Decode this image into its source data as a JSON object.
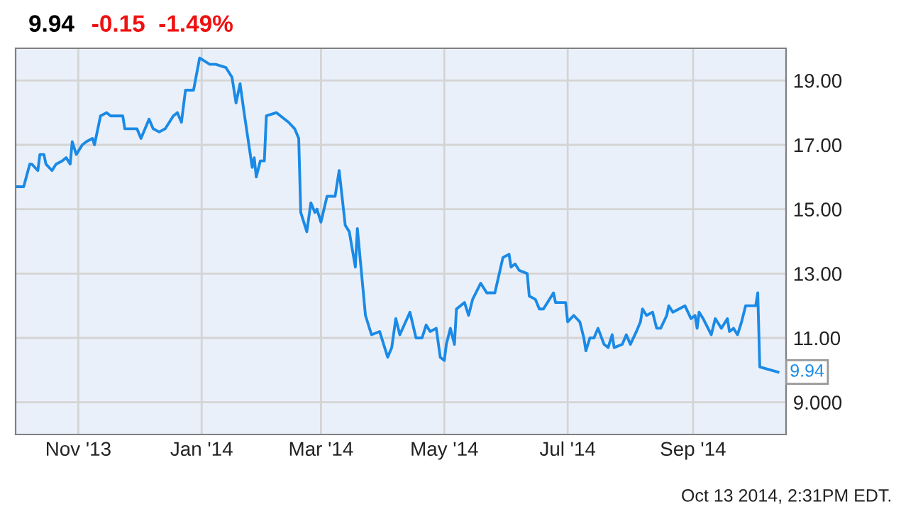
{
  "chart_data": {
    "type": "line",
    "title": "9.94",
    "subtitle": "-0.15  -1.49%",
    "annotations": [
      {
        "text": "9.94",
        "x": "2014-10-13",
        "y": 9.94
      },
      "Oct 13 2014, 2:31PM EDT."
    ],
    "xlim": [
      "2013-10-01",
      "2014-10-17"
    ],
    "xticks": [
      {
        "value": "2013-11-01",
        "label": "Nov '13"
      },
      {
        "value": "2014-01-01",
        "label": "Jan '14"
      },
      {
        "value": "2014-03-01",
        "label": "Mar '14"
      },
      {
        "value": "2014-05-01",
        "label": "May '14"
      },
      {
        "value": "2014-07-01",
        "label": "Jul '14"
      },
      {
        "value": "2014-09-01",
        "label": "Sep '14"
      }
    ],
    "ylim": [
      8,
      20
    ],
    "yticks": [
      {
        "value": 9,
        "label": "9.000"
      },
      {
        "value": 11,
        "label": "11.00"
      },
      {
        "value": 13,
        "label": "13.00"
      },
      {
        "value": 15,
        "label": "15.00"
      },
      {
        "value": 17,
        "label": "17.00"
      },
      {
        "value": 19,
        "label": "19.00"
      }
    ],
    "grid": true,
    "legend": false,
    "marker": "none",
    "line_style": "solid",
    "series": [
      {
        "color": "#1a8ae6",
        "x": [
          "2013-10-01",
          "2013-10-05",
          "2013-10-08",
          "2013-10-09",
          "2013-10-12",
          "2013-10-13",
          "2013-10-15",
          "2013-10-16",
          "2013-10-19",
          "2013-10-21",
          "2013-10-24",
          "2013-10-26",
          "2013-10-28",
          "2013-10-29",
          "2013-10-31",
          "2013-11-03",
          "2013-11-05",
          "2013-11-08",
          "2013-11-09",
          "2013-11-12",
          "2013-11-15",
          "2013-11-17",
          "2013-11-20",
          "2013-11-23",
          "2013-11-24",
          "2013-11-27",
          "2013-11-30",
          "2013-12-02",
          "2013-12-06",
          "2013-12-08",
          "2013-12-11",
          "2013-12-14",
          "2013-12-18",
          "2013-12-20",
          "2013-12-22",
          "2013-12-24",
          "2013-12-28",
          "2013-12-31",
          "2014-01-05",
          "2014-01-08",
          "2014-01-13",
          "2014-01-16",
          "2014-01-18",
          "2014-01-20",
          "2014-01-22",
          "2014-01-26",
          "2014-01-27",
          "2014-01-28",
          "2014-01-30",
          "2014-02-01",
          "2014-02-02",
          "2014-02-07",
          "2014-02-09",
          "2014-02-13",
          "2014-02-16",
          "2014-02-18",
          "2014-02-19",
          "2014-02-22",
          "2014-02-24",
          "2014-02-26",
          "2014-02-27",
          "2014-03-01",
          "2014-03-04",
          "2014-03-08",
          "2014-03-10",
          "2014-03-13",
          "2014-03-15",
          "2014-03-18",
          "2014-03-19",
          "2014-03-23",
          "2014-03-26",
          "2014-03-30",
          "2014-04-03",
          "2014-04-05",
          "2014-04-07",
          "2014-04-09",
          "2014-04-14",
          "2014-04-17",
          "2014-04-20",
          "2014-04-22",
          "2014-04-24",
          "2014-04-27",
          "2014-04-29",
          "2014-05-01",
          "2014-05-02",
          "2014-05-04",
          "2014-05-06",
          "2014-05-07",
          "2014-05-11",
          "2014-05-13",
          "2014-05-15",
          "2014-05-19",
          "2014-05-22",
          "2014-05-26",
          "2014-05-30",
          "2014-06-02",
          "2014-06-03",
          "2014-06-05",
          "2014-06-07",
          "2014-06-11",
          "2014-06-12",
          "2014-06-15",
          "2014-06-17",
          "2014-06-19",
          "2014-06-24",
          "2014-06-25",
          "2014-06-30",
          "2014-07-01",
          "2014-07-04",
          "2014-07-07",
          "2014-07-09",
          "2014-07-10",
          "2014-07-12",
          "2014-07-14",
          "2014-07-16",
          "2014-07-19",
          "2014-07-21",
          "2014-07-23",
          "2014-07-24",
          "2014-07-28",
          "2014-07-30",
          "2014-08-01",
          "2014-08-04",
          "2014-08-06",
          "2014-08-07",
          "2014-08-09",
          "2014-08-12",
          "2014-08-14",
          "2014-08-16",
          "2014-08-19",
          "2014-08-20",
          "2014-08-22",
          "2014-08-28",
          "2014-08-31",
          "2014-09-02",
          "2014-09-03",
          "2014-09-04",
          "2014-09-06",
          "2014-09-10",
          "2014-09-12",
          "2014-09-15",
          "2014-09-18",
          "2014-09-19",
          "2014-09-21",
          "2014-09-23",
          "2014-09-25",
          "2014-09-27",
          "2014-09-30",
          "2014-10-02",
          "2014-10-03",
          "2014-10-04",
          "2014-10-13"
        ],
        "values": [
          15.7,
          15.7,
          16.4,
          16.4,
          16.2,
          16.7,
          16.7,
          16.4,
          16.2,
          16.4,
          16.5,
          16.6,
          16.4,
          17.1,
          16.7,
          17.0,
          17.1,
          17.2,
          17.0,
          17.9,
          18.0,
          17.9,
          17.9,
          17.9,
          17.5,
          17.5,
          17.5,
          17.2,
          17.8,
          17.5,
          17.4,
          17.5,
          17.9,
          18.0,
          17.7,
          18.7,
          18.7,
          19.7,
          19.5,
          19.5,
          19.4,
          19.1,
          18.3,
          18.9,
          18.0,
          16.3,
          16.6,
          16.0,
          16.5,
          16.5,
          17.9,
          18.0,
          17.9,
          17.7,
          17.5,
          17.2,
          14.9,
          14.3,
          15.2,
          14.9,
          15.0,
          14.6,
          15.4,
          15.4,
          16.2,
          14.5,
          14.3,
          13.2,
          14.4,
          11.7,
          11.1,
          11.2,
          10.4,
          10.7,
          11.6,
          11.1,
          11.8,
          11.0,
          11.0,
          11.4,
          11.2,
          11.3,
          10.4,
          10.3,
          10.8,
          11.3,
          10.8,
          11.9,
          12.1,
          11.7,
          12.2,
          12.7,
          12.4,
          12.4,
          13.5,
          13.6,
          13.2,
          13.3,
          13.1,
          13.0,
          12.3,
          12.2,
          11.9,
          11.9,
          12.4,
          12.1,
          12.1,
          11.5,
          11.7,
          11.5,
          11.0,
          10.6,
          11.0,
          11.0,
          11.3,
          10.8,
          10.7,
          11.1,
          10.7,
          10.8,
          11.1,
          10.8,
          11.2,
          11.5,
          11.9,
          11.7,
          11.8,
          11.3,
          11.3,
          11.7,
          12.0,
          11.8,
          12.0,
          11.6,
          11.7,
          11.3,
          11.8,
          11.6,
          11.1,
          11.6,
          11.3,
          11.6,
          11.2,
          11.3,
          11.1,
          11.5,
          12.0,
          12.0,
          12.0,
          12.4,
          10.1,
          9.94
        ]
      }
    ]
  }
}
